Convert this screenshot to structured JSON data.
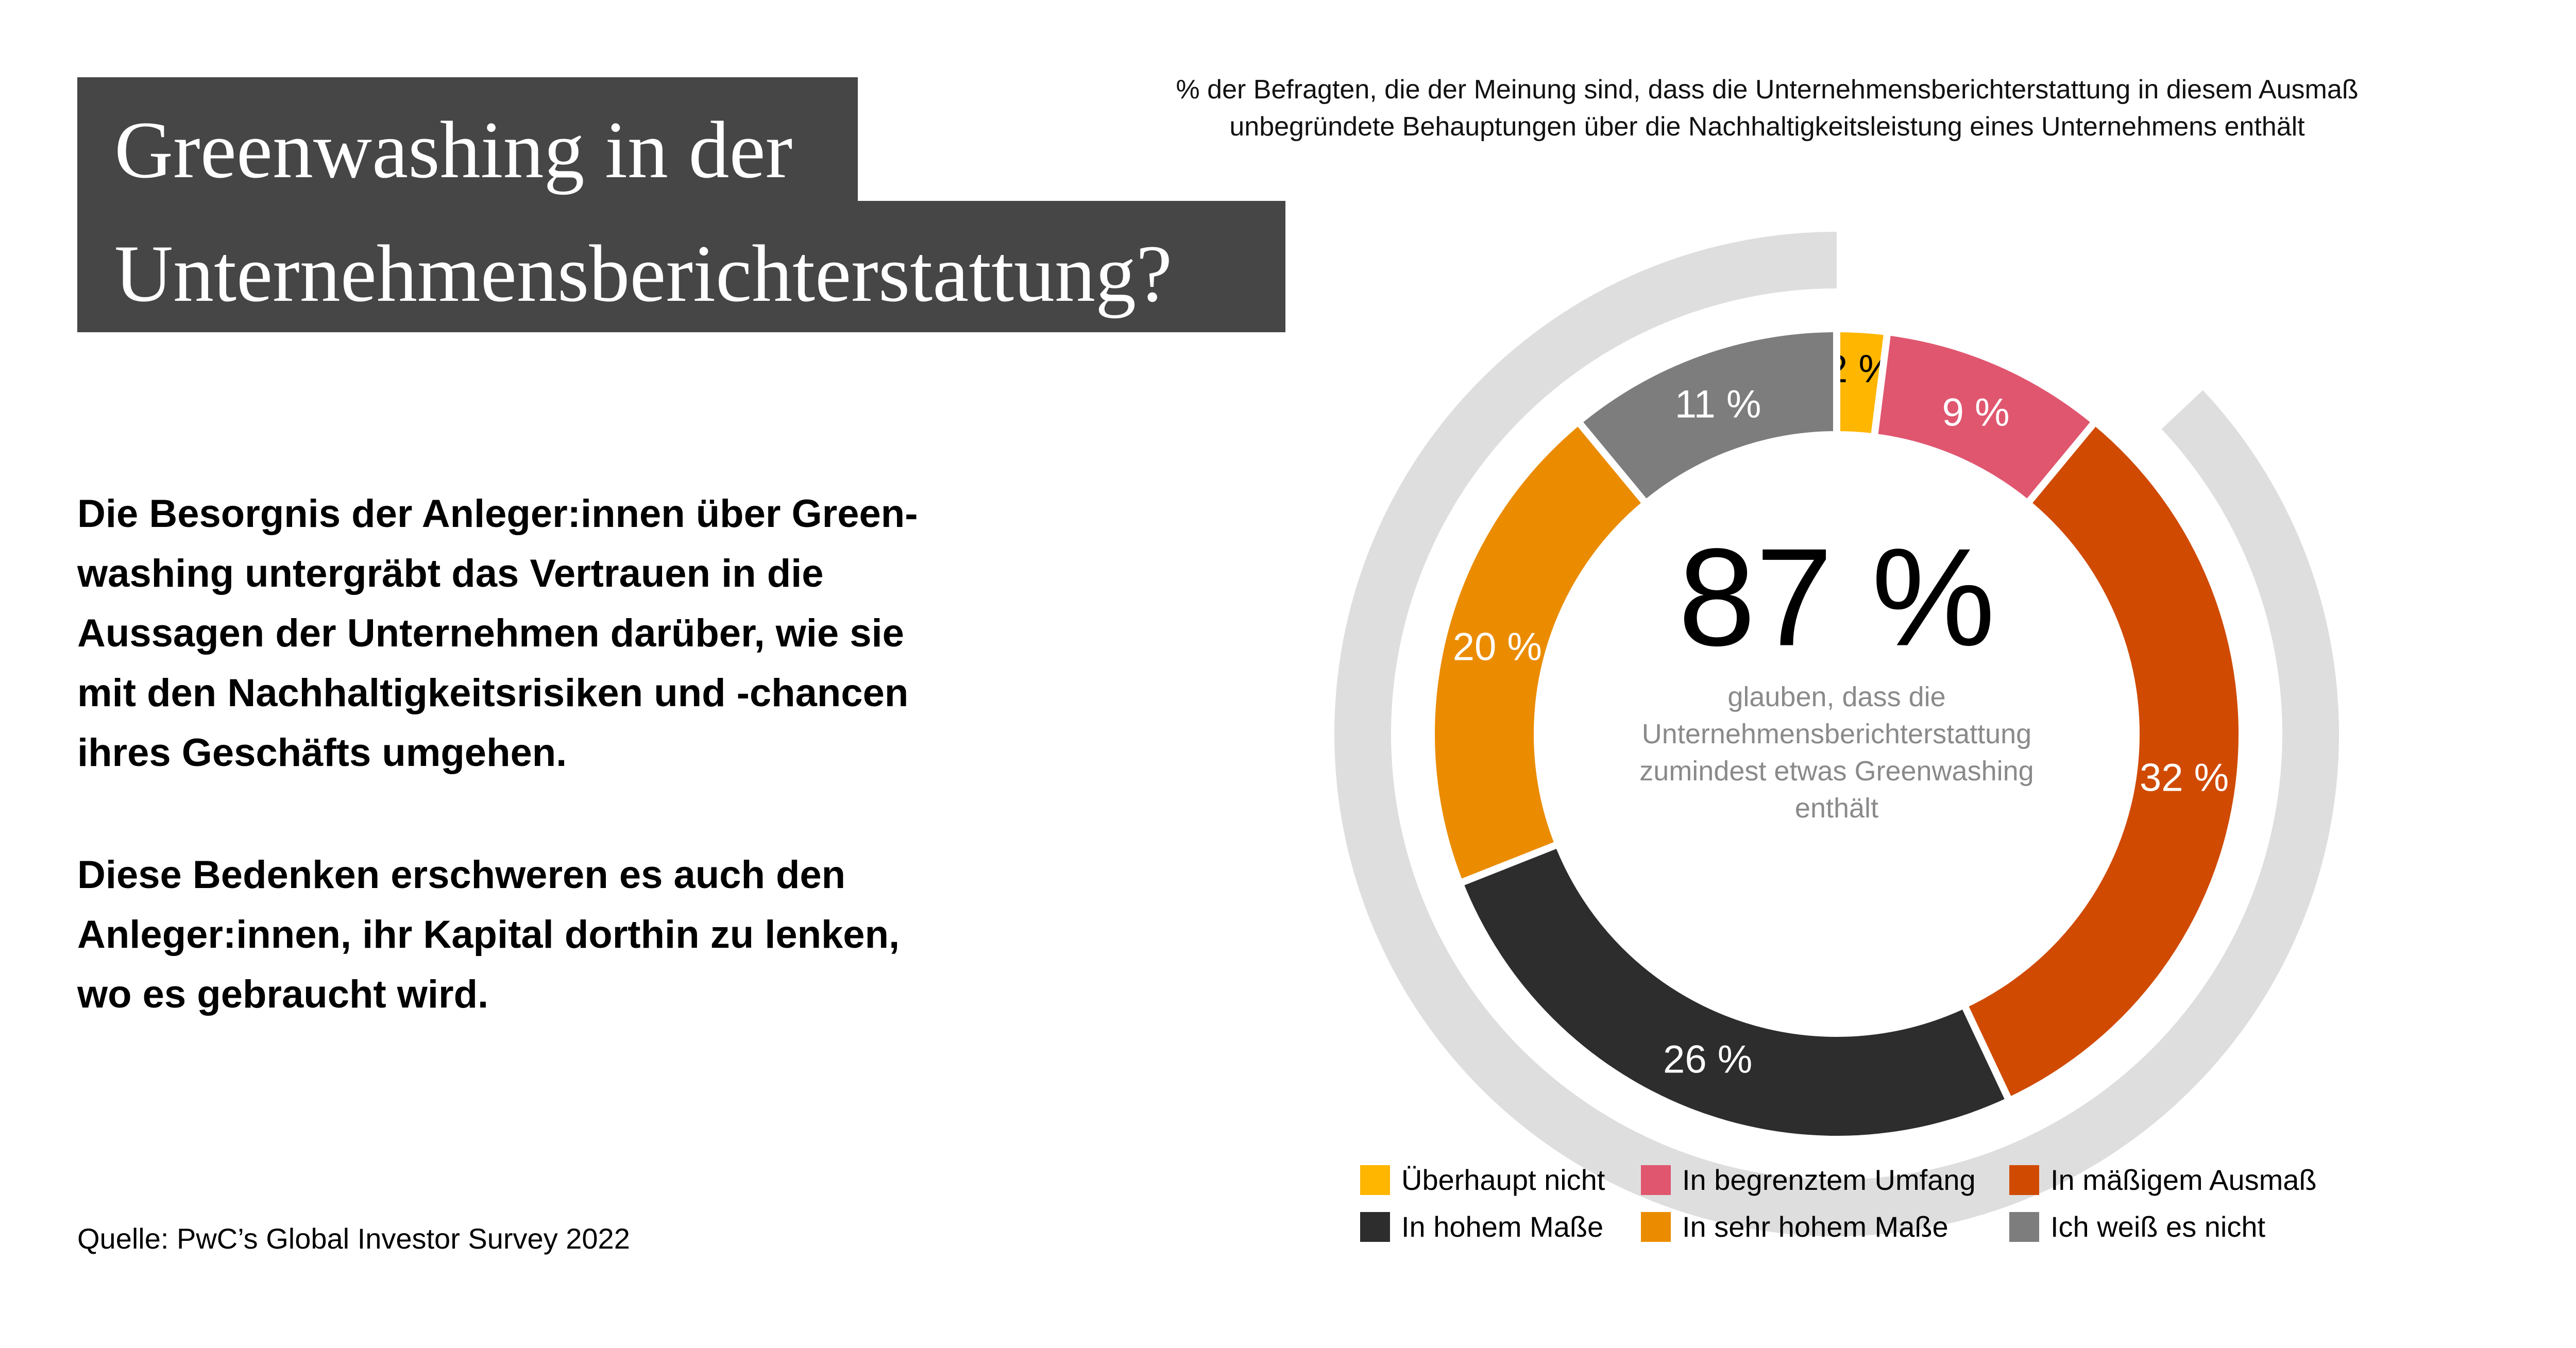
{
  "title": {
    "line1": "Greenwashing in der",
    "line2": "Unternehmensberichterstattung?"
  },
  "paragraphs": [
    [
      "Die Besorgnis der Anleger:innen über Green-",
      "washing untergräbt das Vertrauen in die",
      "Aussagen der Unternehmen darüber, wie sie",
      "mit den Nachhaltigkeitsrisiken und -chancen",
      "ihres Geschäfts umgehen."
    ],
    [
      "Diese Bedenken erschweren es auch den",
      "Anleger:innen, ihr Kapital dorthin zu lenken,",
      "wo es gebraucht wird."
    ]
  ],
  "source": "Quelle: PwC’s Global Investor Survey 2022",
  "chart_data": {
    "type": "pie",
    "subtitle": [
      "% der Befragten, die der Meinung sind, dass die Unternehmensberichterstattung in diesem Ausmaß",
      "unbegründete Behauptungen über die Nachhaltigkeitsleistung eines Unternehmens enthält"
    ],
    "center_value": "87 %",
    "center_text": [
      "glauben, dass die",
      "Unternehmensberichterstattung",
      "zumindest etwas Greenwashing",
      "enthält"
    ],
    "highlight_share": 87,
    "slices": [
      {
        "name": "Überhaupt nicht",
        "value": 2,
        "label": "2 %",
        "color": "#FFB600",
        "label_color": "#000000"
      },
      {
        "name": "In begrenztem Umfang",
        "value": 9,
        "label": "9 %",
        "color": "#E0566F",
        "label_color": "#ffffff"
      },
      {
        "name": "In mäßigem Ausmaß",
        "value": 32,
        "label": "32 %",
        "color": "#D04A02",
        "label_color": "#ffffff"
      },
      {
        "name": "In hohem Maße",
        "value": 26,
        "label": "26 %",
        "color": "#2D2D2D",
        "label_color": "#ffffff"
      },
      {
        "name": "In sehr hohem Maße",
        "value": 20,
        "label": "20 %",
        "color": "#EB8C00",
        "label_color": "#ffffff"
      },
      {
        "name": "Ich weiß es nicht",
        "value": 11,
        "label": "11 %",
        "color": "#7D7D7D",
        "label_color": "#ffffff"
      }
    ],
    "outer_ring_color": "#DEDEDE",
    "legend_position": "bottom"
  }
}
